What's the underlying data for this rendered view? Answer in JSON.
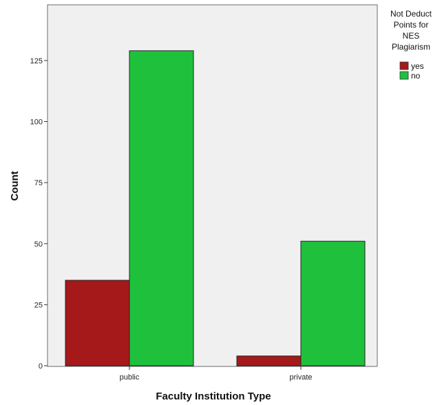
{
  "chart_data": {
    "type": "bar",
    "xlabel": "Faculty Institution Type",
    "ylabel": "Count",
    "categories": [
      "public",
      "private"
    ],
    "series": [
      {
        "name": "yes",
        "values": [
          35,
          4
        ],
        "color": "#a5191b"
      },
      {
        "name": "no",
        "values": [
          129,
          51
        ],
        "color": "#1fc13c"
      }
    ],
    "legend_title_lines": [
      "Not Deduct",
      "Points for",
      "NES",
      "Plagiarism"
    ],
    "legend_position": "top-right",
    "yticks": [
      0,
      25,
      50,
      75,
      100,
      125
    ],
    "ylim": [
      0,
      148
    ],
    "grid": false,
    "plot_background": "#f0f0f0"
  }
}
